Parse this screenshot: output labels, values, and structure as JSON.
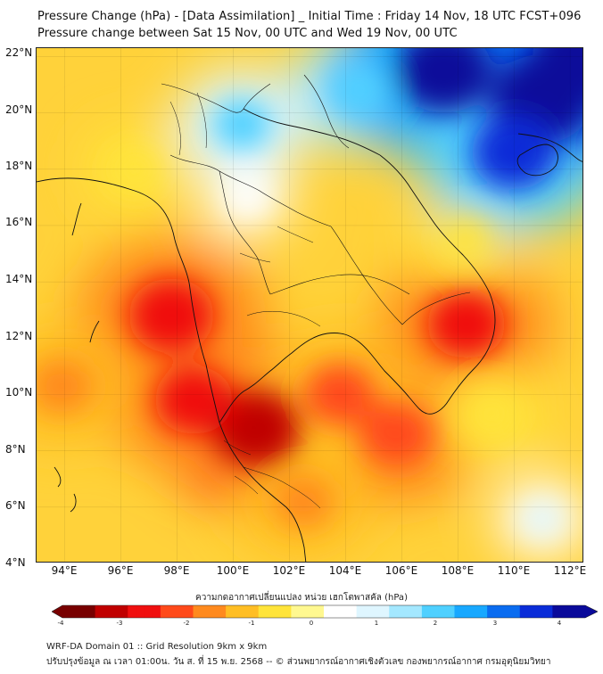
{
  "header": {
    "title_line1": "Pressure Change (hPa) - [Data Assimilation] _ Initial Time : Friday 14 Nov, 18 UTC FCST+096",
    "title_line2": "Pressure change between Sat 15 Nov, 00 UTC and Wed 19 Nov, 00 UTC"
  },
  "map": {
    "lat_labels": [
      "22°N",
      "20°N",
      "18°N",
      "16°N",
      "14°N",
      "12°N",
      "10°N",
      "8°N",
      "6°N",
      "4°N"
    ],
    "lon_labels": [
      "94°E",
      "96°E",
      "98°E",
      "100°E",
      "102°E",
      "104°E",
      "106°E",
      "108°E",
      "110°E",
      "112°E"
    ],
    "lat_range": [
      4,
      22.3
    ],
    "lon_range": [
      93,
      112.5
    ],
    "field": [
      {
        "lon": 97.8,
        "lat": 12.8,
        "value": -3.0
      },
      {
        "lon": 100.8,
        "lat": 8.8,
        "value": -3.2
      },
      {
        "lon": 98.6,
        "lat": 9.8,
        "value": -2.6
      },
      {
        "lon": 108.3,
        "lat": 12.5,
        "value": -2.6
      },
      {
        "lon": 105.8,
        "lat": 8.6,
        "value": -2.4
      },
      {
        "lon": 103.8,
        "lat": 10.0,
        "value": -2.2
      },
      {
        "lon": 93.9,
        "lat": 10.3,
        "value": -1.8
      },
      {
        "lon": 102.5,
        "lat": 6.2,
        "value": -1.6
      },
      {
        "lon": 108.3,
        "lat": 15.5,
        "value": -1.0
      },
      {
        "lon": 109.2,
        "lat": 9.3,
        "value": -0.9
      },
      {
        "lon": 96.5,
        "lat": 18.0,
        "value": -0.8
      },
      {
        "lon": 100.5,
        "lat": 17.0,
        "value": 0.4
      },
      {
        "lon": 111.0,
        "lat": 5.6,
        "value": 0.5
      },
      {
        "lon": 100.3,
        "lat": 19.6,
        "value": 1.5
      },
      {
        "lon": 104.5,
        "lat": 20.8,
        "value": 1.7
      },
      {
        "lon": 107.5,
        "lat": 21.5,
        "value": 3.6
      },
      {
        "lon": 111.0,
        "lat": 20.5,
        "value": 3.9
      },
      {
        "lon": 110.0,
        "lat": 18.6,
        "value": 3.0
      },
      {
        "lon": 112.5,
        "lat": 22.0,
        "value": 4.0
      }
    ]
  },
  "colorbar": {
    "title": "ความกดอากาศเปลี่ยนแปลง หน่วย เฮกโตพาสคัล (hPa)",
    "ticks": [
      "-4",
      "-3",
      "-2",
      "-1",
      "0",
      "1",
      "2",
      "3",
      "4"
    ],
    "colors": [
      "#780000",
      "#c00000",
      "#f00f0f",
      "#ff4a1a",
      "#ff8a1e",
      "#ffbe24",
      "#ffe43a",
      "#fff890",
      "#ffffff",
      "#dff6ff",
      "#a4e8ff",
      "#4fd0ff",
      "#18a8ff",
      "#0a6cf0",
      "#0a2cd8",
      "#0a0a9a"
    ]
  },
  "footer": {
    "line1": "WRF-DA Domain 01 :: Grid Resolution 9km x 9km",
    "line2": "ปรับปรุงข้อมูล ณ เวลา 01:00น. วัน ส. ที่ 15 พ.ย. 2568 -- © ส่วนพยากรณ์อากาศเชิงตัวเลข กองพยากรณ์อากาศ กรมอุตุนิยมวิทยา"
  }
}
